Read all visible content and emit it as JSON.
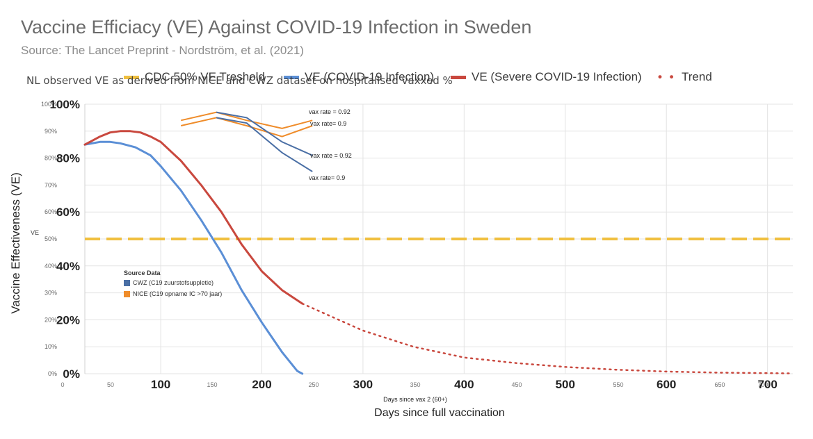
{
  "title": "Vaccine Efficiacy (VE) Against COVID-19 Infection in Sweden",
  "subtitle": "Source: The Lancet Preprint - Nordström, et al. (2021)",
  "overlay_note": "NL observed VE as derived from NICE and CWZ dataset on hospitalised vaxxed %",
  "legend": [
    {
      "label": "CDC 50% VE Treshold",
      "color": "#f0c040",
      "style": "dash"
    },
    {
      "label": "VE (COVID-19 Infection)",
      "color": "#5b8fd6",
      "style": "solid"
    },
    {
      "label": "VE (Severe COVID-19 Infection)",
      "color": "#c9483e",
      "style": "solid"
    },
    {
      "label": "Trend",
      "color": "#c9483e",
      "style": "dots"
    }
  ],
  "source_box": {
    "title": "Source Data",
    "items": [
      {
        "label": "CWZ (C19 zuurstofsuppletie)",
        "color": "#4a6fa5"
      },
      {
        "label": "NICE (C19 opname IC >70 jaar)",
        "color": "#ef8c2a"
      }
    ]
  },
  "annotations": {
    "a1": "vax rate = 0.92",
    "a2": "vax rate= 0.9",
    "a3": "vax rate = 0.92",
    "a4": "vax rate= 0.9"
  },
  "chart_data": {
    "type": "line",
    "title": "Vaccine Efficiacy (VE) Against COVID-19 Infection in Sweden",
    "xlabel": "Days since full vaccination",
    "xlabel_overlay": "Days since vax 2 (60+)",
    "ylabel": "Vaccine Effectiveness (VE)",
    "ylabel_sub": "VE",
    "x_ticks_large": [
      "100",
      "200",
      "300",
      "400",
      "500",
      "600",
      "700"
    ],
    "x_ticks_large_values": [
      100,
      200,
      300,
      400,
      500,
      600,
      700
    ],
    "x_ticks_small": [
      "0",
      "50",
      "150",
      "250",
      "350",
      "450",
      "550",
      "650",
      "700"
    ],
    "x_ticks_small_values": [
      0,
      50,
      150,
      250,
      350,
      450,
      550,
      650,
      700
    ],
    "y_ticks_large": [
      "0%",
      "20%",
      "40%",
      "60%",
      "80%",
      "100%"
    ],
    "y_ticks_small": [
      "0%",
      "10%",
      "20%",
      "30%",
      "40%",
      "50%",
      "60%",
      "70%",
      "80%",
      "90%",
      "100%"
    ],
    "xlim": [
      25,
      725
    ],
    "ylim": [
      0,
      100
    ],
    "grid": true,
    "threshold": {
      "name": "CDC 50% VE Treshold",
      "y": 50,
      "color": "#f0c040"
    },
    "series": [
      {
        "name": "VE (COVID-19 Infection)",
        "color": "#5b8fd6",
        "x": [
          25,
          40,
          50,
          60,
          75,
          90,
          100,
          120,
          140,
          160,
          180,
          200,
          220,
          235,
          240
        ],
        "y": [
          85,
          86,
          86,
          85.5,
          84,
          81,
          77,
          68,
          57,
          45,
          31,
          19,
          8,
          1,
          0
        ]
      },
      {
        "name": "VE (Severe COVID-19 Infection)",
        "color": "#c9483e",
        "x": [
          25,
          40,
          50,
          60,
          70,
          80,
          90,
          100,
          120,
          140,
          160,
          180,
          200,
          220,
          240
        ],
        "y": [
          85,
          88,
          89.5,
          90,
          90,
          89.5,
          88,
          86,
          79,
          70,
          60,
          48,
          38,
          31,
          26
        ]
      },
      {
        "name": "Trend",
        "color": "#c9483e",
        "style": "dotted",
        "x": [
          240,
          270,
          300,
          350,
          400,
          450,
          500,
          550,
          600,
          650,
          700,
          725
        ],
        "y": [
          26,
          21,
          16,
          10,
          6,
          4,
          2.5,
          1.5,
          0.8,
          0.4,
          0.2,
          0.1
        ]
      }
    ],
    "overlay_series": [
      {
        "source": "NICE",
        "label": "vax rate = 0.92",
        "color": "#ef8c2a",
        "x": [
          120,
          155,
          185,
          220,
          250
        ],
        "y": [
          94,
          97,
          94,
          91,
          94
        ]
      },
      {
        "source": "NICE",
        "label": "vax rate= 0.9",
        "color": "#ef8c2a",
        "x": [
          120,
          155,
          185,
          220,
          250
        ],
        "y": [
          92,
          95,
          92,
          88,
          92
        ]
      },
      {
        "source": "CWZ",
        "label": "vax rate = 0.92",
        "color": "#4a6fa5",
        "x": [
          155,
          185,
          220,
          250
        ],
        "y": [
          97,
          95,
          86,
          81
        ]
      },
      {
        "source": "CWZ",
        "label": "vax rate= 0.9",
        "color": "#4a6fa5",
        "x": [
          155,
          185,
          220,
          250
        ],
        "y": [
          95,
          93,
          82,
          75
        ]
      }
    ]
  }
}
